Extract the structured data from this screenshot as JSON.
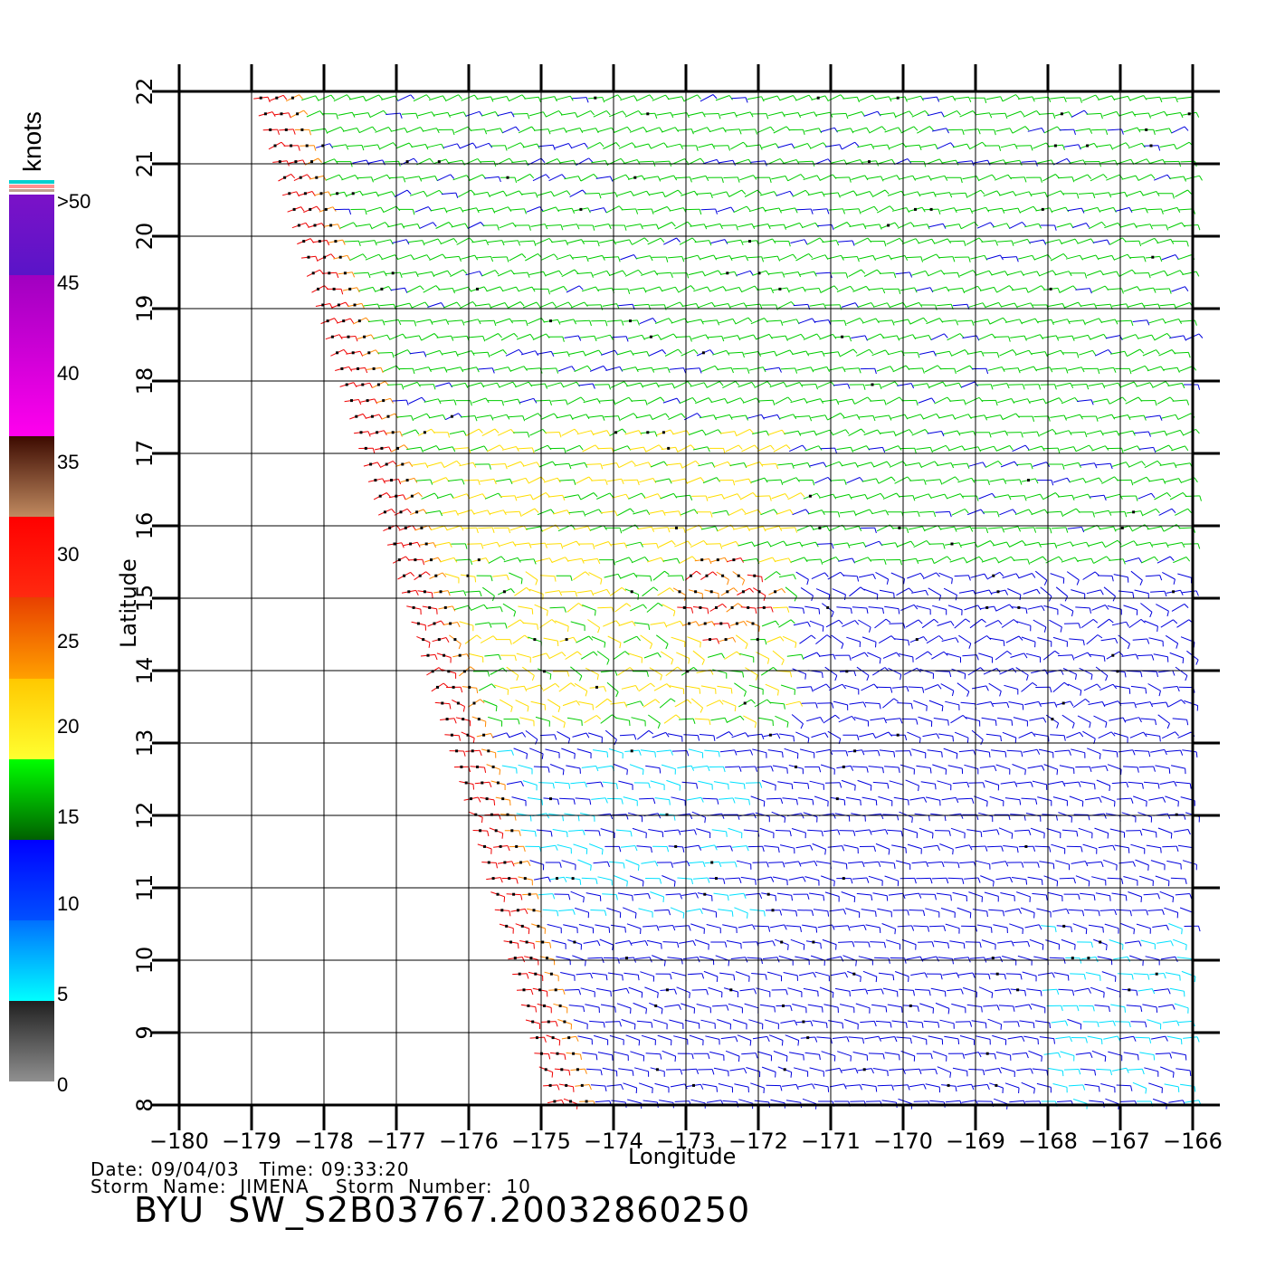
{
  "chart_data": {
    "type": "wind_barb_map",
    "xlabel": "Longitude",
    "ylabel": "Latitude",
    "xlim": [
      -180,
      -166
    ],
    "ylim": [
      8,
      22
    ],
    "x_ticks": [
      "−180",
      "−179",
      "−178",
      "−177",
      "−176",
      "−175",
      "−174",
      "−173",
      "−172",
      "−171",
      "−170",
      "−169",
      "−168",
      "−167",
      "−166"
    ],
    "y_ticks": [
      "8",
      "9",
      "10",
      "11",
      "12",
      "13",
      "14",
      "15",
      "16",
      "17",
      "18",
      "19",
      "20",
      "21",
      "22"
    ],
    "grid": true,
    "swath_left_edge": [
      [
        -178.9,
        22
      ],
      [
        -177.1,
        16
      ],
      [
        -175.9,
        12
      ],
      [
        -174.8,
        8
      ]
    ],
    "high_wind_center": [
      -172.5,
      15.0
    ],
    "colorbar": {
      "units": "knots",
      "labels": [
        ">50",
        "45",
        "40",
        "35",
        "30",
        "25",
        "20",
        "15",
        "10",
        "5",
        "0"
      ],
      "bins": [
        {
          "from": 50,
          "to": 55,
          "top": "#7b12c8",
          "bottom": "#5a14c8"
        },
        {
          "from": 40,
          "to": 50,
          "top": "#a000c0",
          "bottom": "#ff00ee"
        },
        {
          "from": 35,
          "to": 40,
          "top": "#3c0a00",
          "bottom": "#c08a60"
        },
        {
          "from": 30,
          "to": 35,
          "top": "#ff0000",
          "bottom": "#ff2a10"
        },
        {
          "from": 25,
          "to": 30,
          "top": "#e84000",
          "bottom": "#ffa000"
        },
        {
          "from": 20,
          "to": 25,
          "top": "#ffc800",
          "bottom": "#ffff30"
        },
        {
          "from": 15,
          "to": 20,
          "top": "#00ff00",
          "bottom": "#006000"
        },
        {
          "from": 10,
          "to": 15,
          "top": "#0000ff",
          "bottom": "#0050ff"
        },
        {
          "from": 5,
          "to": 10,
          "top": "#0070ff",
          "bottom": "#00ffff"
        },
        {
          "from": 0,
          "to": 5,
          "top": "#202020",
          "bottom": "#909090"
        }
      ]
    }
  },
  "footer": {
    "date_line": "Date: 09/04/03   Time: 09:33:20",
    "storm_line": "Storm  Name:  JIMENA    Storm  Number:  10",
    "product_id": "BYU  SW_S2B03767.20032860250"
  },
  "colors": {
    "blue": "#0000dd",
    "cyan": "#00e0ff",
    "green": "#00cc00",
    "yellow": "#ffdd00",
    "orange": "#ff8800",
    "red": "#ee0000",
    "black": "#000000"
  }
}
